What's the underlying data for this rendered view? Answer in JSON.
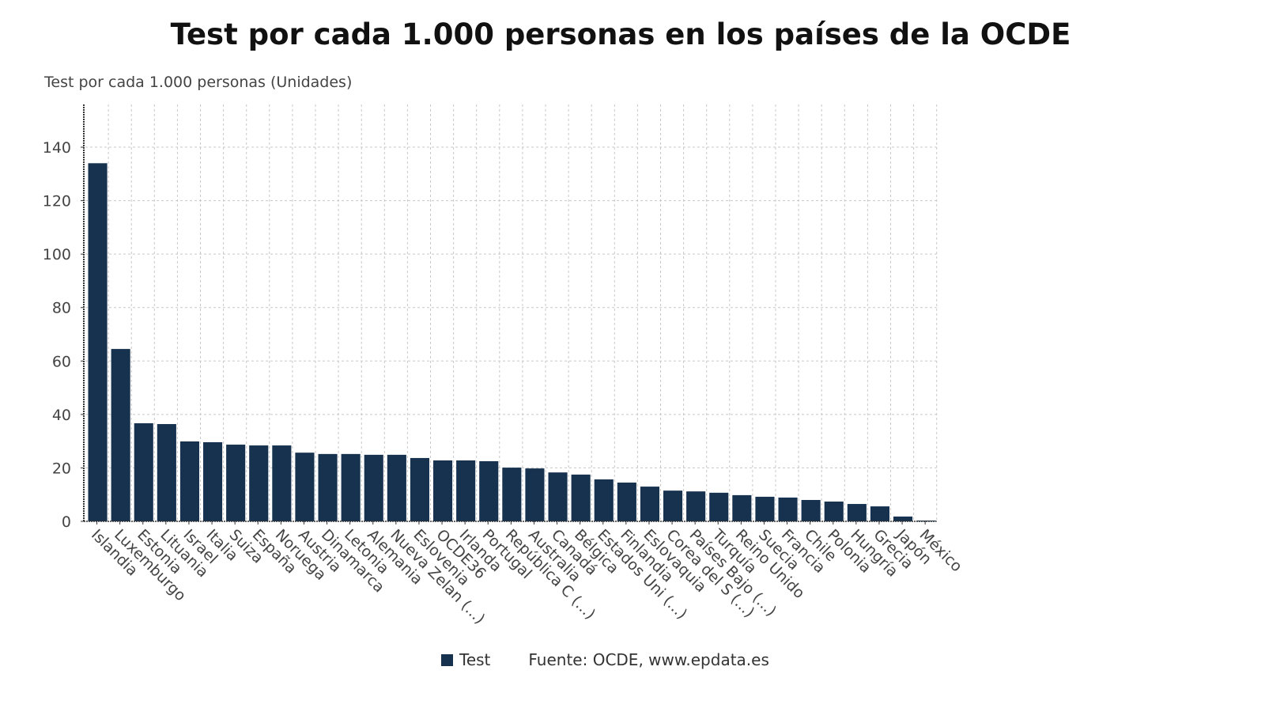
{
  "chart_data": {
    "type": "bar",
    "title": "Test por cada 1.000 personas en los países de la OCDE",
    "ylabel": "Test por cada 1.000 personas (Unidades)",
    "xlabel": "",
    "ylim": [
      0,
      156
    ],
    "yticks": [
      0,
      20,
      40,
      60,
      80,
      100,
      120,
      140
    ],
    "grid": true,
    "legend_placement": "bottom",
    "series": [
      {
        "name": "Test",
        "color": "#16324f"
      }
    ],
    "source": "Fuente: OCDE, www.epdata.es",
    "categories": [
      "Islandia",
      "Luxemburgo",
      "Estonia",
      "Lituania",
      "Israel",
      "Italia",
      "Suiza",
      "España",
      "Noruega",
      "Austria",
      "Dinamarca",
      "Letonia",
      "Alemania",
      "Nueva Zelan (...)",
      "Eslovenia",
      "OCDE36",
      "Irlanda",
      "Portugal",
      "República C (...)",
      "Australia",
      "Canadá",
      "Bélgica",
      "Estados Uni (...)",
      "Finlandia",
      "Eslovaquia",
      "Corea del S (...)",
      "Países Bajo (...)",
      "Turquía",
      "Reino Unido",
      "Suecia",
      "Francia",
      "Chile",
      "Polonia",
      "Hungría",
      "Grecia",
      "Japón",
      "México"
    ],
    "values": [
      134,
      64.5,
      36.7,
      36.4,
      29.9,
      29.6,
      28.7,
      28.4,
      28.4,
      25.7,
      25.2,
      25.2,
      24.9,
      24.9,
      23.7,
      22.8,
      22.8,
      22.5,
      20.1,
      19.8,
      18.3,
      17.5,
      15.7,
      14.5,
      13.0,
      11.5,
      11.2,
      10.7,
      9.8,
      9.2,
      8.9,
      8.0,
      7.4,
      6.5,
      5.6,
      1.8,
      0.3
    ]
  }
}
